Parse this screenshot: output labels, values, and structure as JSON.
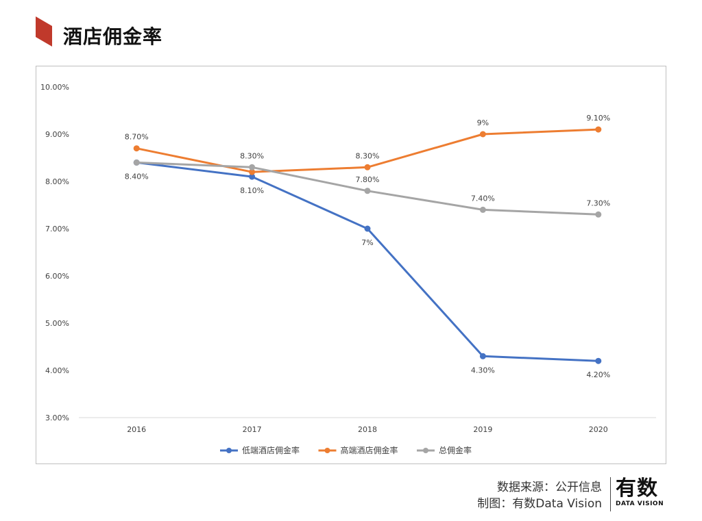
{
  "header": {
    "title": "酒店佣金率",
    "accent_color": "#c0392b"
  },
  "footer": {
    "source": "数据来源：公开信息",
    "credit": "制图：有数Data Vision",
    "logo_cn": "有数",
    "logo_en": "DATA VISION"
  },
  "chart_data": {
    "type": "line",
    "title": "",
    "xlabel": "",
    "ylabel": "",
    "categories": [
      "2016",
      "2017",
      "2018",
      "2019",
      "2020"
    ],
    "ylim": [
      3,
      10
    ],
    "yticks": [
      "3.00%",
      "4.00%",
      "5.00%",
      "6.00%",
      "7.00%",
      "8.00%",
      "9.00%",
      "10.00%"
    ],
    "legend_position": "bottom",
    "series": [
      {
        "name": "低端酒店佣金率",
        "color": "#4472c4",
        "values": [
          8.4,
          8.1,
          7.0,
          4.3,
          4.2
        ],
        "labels": [
          "",
          "8.10%",
          "7%",
          "4.30%",
          "4.20%"
        ],
        "label_position": "below"
      },
      {
        "name": "高端酒店佣金率",
        "color": "#ed7d31",
        "values": [
          8.7,
          8.2,
          8.3,
          9.0,
          9.1
        ],
        "labels": [
          "8.70%",
          "",
          "8.30%",
          "9%",
          "9.10%"
        ],
        "label_position": "above"
      },
      {
        "name": "总佣金率",
        "color": "#a5a5a5",
        "values": [
          8.4,
          8.3,
          7.8,
          7.4,
          7.3
        ],
        "labels": [
          "8.40%",
          "8.30%",
          "7.80%",
          "7.40%",
          "7.30%"
        ],
        "label_position": "mixed"
      }
    ]
  }
}
